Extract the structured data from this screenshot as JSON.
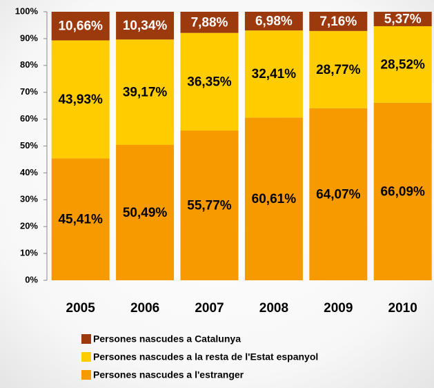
{
  "chart_data": {
    "type": "stacked_bar",
    "categories": [
      "2005",
      "2006",
      "2007",
      "2008",
      "2009",
      "2010"
    ],
    "series": [
      {
        "name": "Persones nascudes a l'estranger",
        "color": "#F79A00",
        "values": [
          45.41,
          50.49,
          55.77,
          60.61,
          64.07,
          66.09
        ],
        "value_labels": [
          "45,41%",
          "50,49%",
          "55,77%",
          "60,61%",
          "64,07%",
          "66,09%"
        ]
      },
      {
        "name": "Persones nascudes a la resta de l'Estat espanyol",
        "color": "#FFCC00",
        "values": [
          43.93,
          39.17,
          36.35,
          32.41,
          28.77,
          28.52
        ],
        "value_labels": [
          "43,93%",
          "39,17%",
          "36,35%",
          "32,41%",
          "28,77%",
          "28,52%"
        ]
      },
      {
        "name": "Persones nascudes a Catalunya",
        "color": "#9C3A0E",
        "values": [
          10.66,
          10.34,
          7.88,
          6.98,
          7.16,
          5.37
        ],
        "value_labels": [
          "10,66%",
          "10,34%",
          "7,88%",
          "6,98%",
          "7,16%",
          "5,37%"
        ]
      }
    ],
    "ylim": [
      0,
      100
    ],
    "yticks": [
      {
        "value": 0,
        "label": "0%"
      },
      {
        "value": 10,
        "label": "10%"
      },
      {
        "value": 20,
        "label": "20%"
      },
      {
        "value": 30,
        "label": "30%"
      },
      {
        "value": 40,
        "label": "40%"
      },
      {
        "value": 50,
        "label": "50%"
      },
      {
        "value": 60,
        "label": "60%"
      },
      {
        "value": 70,
        "label": "70%"
      },
      {
        "value": 80,
        "label": "80%"
      },
      {
        "value": 90,
        "label": "90%"
      },
      {
        "value": 100,
        "label": "100%"
      }
    ],
    "legend": "bottom"
  }
}
